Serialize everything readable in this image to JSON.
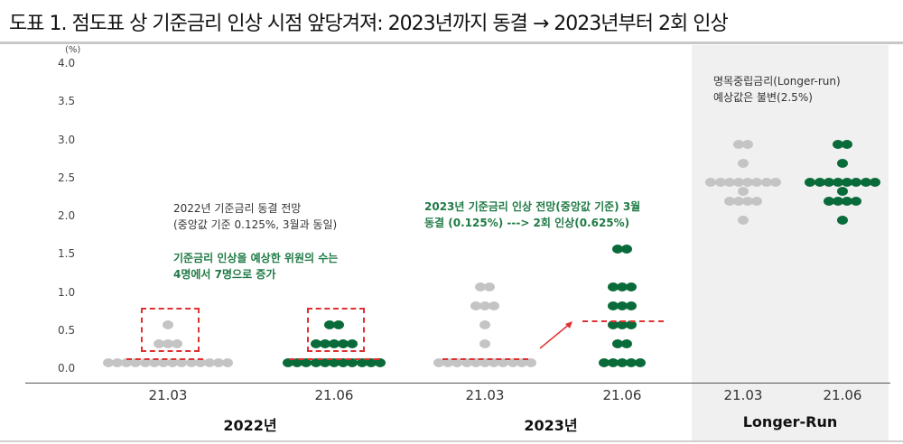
{
  "header": {
    "title": "도표 1. 점도표 상 기준금리 인상 시점 앞당겨져: 2023년까지 동결 → 2023년부터 2회 인상"
  },
  "axis": {
    "unit": "(%)",
    "yticks": [
      "4.0",
      "3.5",
      "3.0",
      "2.5",
      "2.0",
      "1.5",
      "1.0",
      "0.5",
      "0.0"
    ]
  },
  "xlabels": [
    "21.03",
    "21.06",
    "21.03",
    "21.06",
    "21.03",
    "21.06"
  ],
  "groups": [
    "2022년",
    "2023년",
    "Longer-Run"
  ],
  "annotations": {
    "a2022_line1": "2022년  기준금리 동결 전망",
    "a2022_line2": "(중앙값 기준 0.125%, 3월과 동일)",
    "a2022_green1": "기준금리 인상을 예상한 위원의 수는",
    "a2022_green2": "4명에서 7명으로 증가",
    "a2023_line1": "2023년 기준금리 인상 전망(중앙값 기준) 3월",
    "a2023_line2": "동결 (0.125%)  ---> 2회 인상(0.625%)",
    "lr_line1": "명목중립금리(Longer-run)",
    "lr_line2": "예상값은 불변(2.5%)"
  },
  "colors": {
    "march": "#c4c4c4",
    "june": "#0a6b3a",
    "highlight": "#e03030",
    "annotation_green": "#1f7a45"
  },
  "chart_data": {
    "type": "scatter",
    "subtype": "fed dot plot",
    "title": "점도표 상 기준금리 인상 시점 앞당겨져: 2023년까지 동결 → 2023년부터 2회 인상",
    "ylabel": "(%)",
    "ylim": [
      0,
      4.0
    ],
    "yticks": [
      0,
      0.5,
      1.0,
      1.5,
      2.0,
      2.5,
      3.0,
      3.5,
      4.0
    ],
    "categories": [
      "2022 21.03",
      "2022 21.06",
      "2023 21.03",
      "2023 21.06",
      "Longer-Run 21.03",
      "Longer-Run 21.06"
    ],
    "series": [
      {
        "name": "2022 / 21.03",
        "color": "#c4c4c4",
        "dots": [
          {
            "rate": 0.125,
            "count": 14
          },
          {
            "rate": 0.375,
            "count": 3
          },
          {
            "rate": 0.625,
            "count": 1
          }
        ]
      },
      {
        "name": "2022 / 21.06",
        "color": "#0a6b3a",
        "dots": [
          {
            "rate": 0.125,
            "count": 11
          },
          {
            "rate": 0.375,
            "count": 5
          },
          {
            "rate": 0.625,
            "count": 2
          }
        ]
      },
      {
        "name": "2023 / 21.03",
        "color": "#c4c4c4",
        "dots": [
          {
            "rate": 0.125,
            "count": 11
          },
          {
            "rate": 0.375,
            "count": 1
          },
          {
            "rate": 0.625,
            "count": 1
          },
          {
            "rate": 0.875,
            "count": 3
          },
          {
            "rate": 1.125,
            "count": 2
          }
        ]
      },
      {
        "name": "2023 / 21.06",
        "color": "#0a6b3a",
        "dots": [
          {
            "rate": 0.125,
            "count": 5
          },
          {
            "rate": 0.375,
            "count": 2
          },
          {
            "rate": 0.625,
            "count": 3
          },
          {
            "rate": 0.875,
            "count": 3
          },
          {
            "rate": 1.125,
            "count": 3
          },
          {
            "rate": 1.625,
            "count": 2
          }
        ]
      },
      {
        "name": "Longer-Run / 21.03",
        "color": "#c4c4c4",
        "dots": [
          {
            "rate": 2.0,
            "count": 1
          },
          {
            "rate": 2.25,
            "count": 4
          },
          {
            "rate": 2.375,
            "count": 1
          },
          {
            "rate": 2.5,
            "count": 8
          },
          {
            "rate": 2.75,
            "count": 1
          },
          {
            "rate": 3.0,
            "count": 2
          }
        ]
      },
      {
        "name": "Longer-Run / 21.06",
        "color": "#0a6b3a",
        "dots": [
          {
            "rate": 2.0,
            "count": 1
          },
          {
            "rate": 2.25,
            "count": 4
          },
          {
            "rate": 2.375,
            "count": 1
          },
          {
            "rate": 2.5,
            "count": 8
          },
          {
            "rate": 2.75,
            "count": 1
          },
          {
            "rate": 3.0,
            "count": 2
          }
        ]
      }
    ],
    "medians": {
      "2023 / 21.03": 0.125,
      "2023 / 21.06": 0.625,
      "Longer-Run": 2.5
    },
    "annotations": [
      "2022년 기준금리 동결 전망 (중앙값 기준 0.125%, 3월과 동일)",
      "기준금리 인상을 예상한 위원의 수는 4명에서 7명으로 증가",
      "2023년 기준금리 인상 전망(중앙값 기준) 3월 동결 (0.125%) ---> 2회 인상(0.625%)",
      "명목중립금리(Longer-run) 예상값은 불변(2.5%)"
    ],
    "grid": false,
    "legend": "none"
  }
}
